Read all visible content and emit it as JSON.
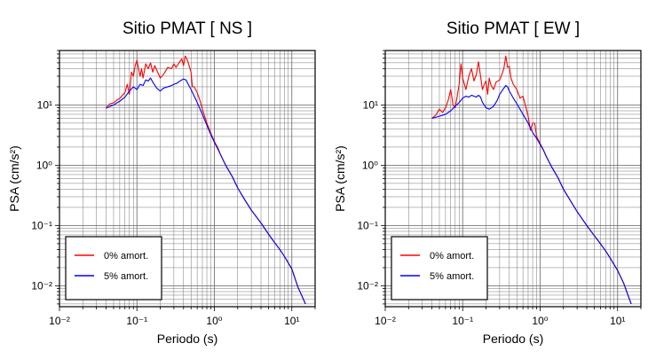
{
  "chart_data": [
    {
      "type": "line",
      "title": "Sitio PMAT [ NS ]",
      "xlabel": "Periodo (s)",
      "ylabel": "PSA (cm/s²)",
      "x_scale": "log",
      "y_scale": "log",
      "xlim": [
        0.01,
        20
      ],
      "ylim": [
        0.0045,
        80
      ],
      "x_ticks": [
        {
          "v": 0.01,
          "label": "10⁻²"
        },
        {
          "v": 0.1,
          "label": "10⁻¹"
        },
        {
          "v": 1,
          "label": "10⁰"
        },
        {
          "v": 10,
          "label": "10¹"
        }
      ],
      "y_ticks": [
        {
          "v": 0.01,
          "label": "10⁻²"
        },
        {
          "v": 0.1,
          "label": "10⁻¹"
        },
        {
          "v": 1,
          "label": "10⁰"
        },
        {
          "v": 10,
          "label": "10¹"
        }
      ],
      "grid": true,
      "legend_position": "bottom-left",
      "series": [
        {
          "name": "0% amort.",
          "color": "#ff0000",
          "points": [
            [
              0.04,
              9.0
            ],
            [
              0.045,
              10.5
            ],
            [
              0.05,
              10.8
            ],
            [
              0.055,
              12.0
            ],
            [
              0.06,
              12.8
            ],
            [
              0.065,
              14.5
            ],
            [
              0.07,
              16.0
            ],
            [
              0.075,
              22.0
            ],
            [
              0.08,
              15.0
            ],
            [
              0.085,
              35.0
            ],
            [
              0.09,
              30.0
            ],
            [
              0.095,
              45.0
            ],
            [
              0.1,
              55.0
            ],
            [
              0.105,
              40.0
            ],
            [
              0.11,
              30.0
            ],
            [
              0.115,
              40.0
            ],
            [
              0.12,
              28.0
            ],
            [
              0.13,
              48.0
            ],
            [
              0.14,
              40.0
            ],
            [
              0.15,
              50.0
            ],
            [
              0.16,
              35.0
            ],
            [
              0.17,
              45.0
            ],
            [
              0.18,
              38.0
            ],
            [
              0.2,
              28.0
            ],
            [
              0.22,
              32.0
            ],
            [
              0.25,
              42.0
            ],
            [
              0.28,
              40.0
            ],
            [
              0.3,
              48.0
            ],
            [
              0.32,
              42.0
            ],
            [
              0.35,
              50.0
            ],
            [
              0.38,
              58.0
            ],
            [
              0.4,
              45.0
            ],
            [
              0.42,
              65.0
            ],
            [
              0.45,
              55.0
            ],
            [
              0.5,
              35.0
            ],
            [
              0.52,
              20.0
            ],
            [
              0.55,
              20.0
            ],
            [
              0.6,
              16.0
            ],
            [
              0.65,
              12.0
            ],
            [
              0.7,
              8.5
            ],
            [
              0.8,
              5.0
            ],
            [
              0.9,
              3.4
            ],
            [
              1.0,
              2.5
            ],
            [
              1.05,
              2.2
            ],
            [
              1.1,
              2.0
            ],
            [
              1.2,
              1.5
            ],
            [
              1.4,
              1.0
            ],
            [
              1.7,
              0.65
            ],
            [
              2.0,
              0.42
            ],
            [
              2.5,
              0.26
            ],
            [
              3.0,
              0.18
            ],
            [
              4.0,
              0.11
            ],
            [
              5.0,
              0.072
            ],
            [
              6.0,
              0.052
            ],
            [
              7.0,
              0.04
            ],
            [
              8.0,
              0.031
            ],
            [
              10.0,
              0.019
            ],
            [
              12.0,
              0.0095
            ],
            [
              13.5,
              0.0068
            ],
            [
              15.0,
              0.005
            ]
          ]
        },
        {
          "name": "5% amort.",
          "color": "#0000ff",
          "points": [
            [
              0.04,
              8.8
            ],
            [
              0.045,
              9.5
            ],
            [
              0.05,
              10.0
            ],
            [
              0.055,
              10.8
            ],
            [
              0.06,
              11.5
            ],
            [
              0.065,
              12.5
            ],
            [
              0.07,
              13.5
            ],
            [
              0.08,
              17.0
            ],
            [
              0.09,
              20.0
            ],
            [
              0.1,
              18.0
            ],
            [
              0.11,
              22.0
            ],
            [
              0.12,
              21.0
            ],
            [
              0.13,
              26.0
            ],
            [
              0.14,
              25.0
            ],
            [
              0.15,
              28.0
            ],
            [
              0.16,
              24.0
            ],
            [
              0.18,
              19.0
            ],
            [
              0.2,
              17.0
            ],
            [
              0.22,
              19.0
            ],
            [
              0.25,
              20.0
            ],
            [
              0.28,
              21.0
            ],
            [
              0.3,
              22.0
            ],
            [
              0.33,
              23.0
            ],
            [
              0.36,
              25.0
            ],
            [
              0.4,
              27.0
            ],
            [
              0.43,
              26.0
            ],
            [
              0.46,
              22.0
            ],
            [
              0.5,
              18.0
            ],
            [
              0.55,
              14.0
            ],
            [
              0.6,
              11.0
            ],
            [
              0.7,
              7.0
            ],
            [
              0.8,
              4.6
            ],
            [
              0.9,
              3.2
            ],
            [
              1.0,
              2.4
            ],
            [
              1.1,
              1.9
            ],
            [
              1.2,
              1.5
            ],
            [
              1.4,
              1.0
            ],
            [
              1.7,
              0.65
            ],
            [
              2.0,
              0.42
            ],
            [
              2.5,
              0.26
            ],
            [
              3.0,
              0.18
            ],
            [
              4.0,
              0.11
            ],
            [
              5.0,
              0.072
            ],
            [
              6.0,
              0.052
            ],
            [
              7.0,
              0.04
            ],
            [
              8.0,
              0.031
            ],
            [
              10.0,
              0.019
            ],
            [
              12.0,
              0.0095
            ],
            [
              13.5,
              0.0068
            ],
            [
              15.0,
              0.005
            ]
          ]
        }
      ]
    },
    {
      "type": "line",
      "title": "Sitio PMAT [ EW ]",
      "xlabel": "Periodo (s)",
      "ylabel": "PSA (cm/s²)",
      "x_scale": "log",
      "y_scale": "log",
      "xlim": [
        0.01,
        20
      ],
      "ylim": [
        0.0045,
        80
      ],
      "x_ticks": [
        {
          "v": 0.01,
          "label": "10⁻²"
        },
        {
          "v": 0.1,
          "label": "10⁻¹"
        },
        {
          "v": 1,
          "label": "10⁰"
        },
        {
          "v": 10,
          "label": "10¹"
        }
      ],
      "y_ticks": [
        {
          "v": 0.01,
          "label": "10⁻²"
        },
        {
          "v": 0.1,
          "label": "10⁻¹"
        },
        {
          "v": 1,
          "label": "10⁰"
        },
        {
          "v": 10,
          "label": "10¹"
        }
      ],
      "grid": true,
      "legend_position": "bottom-left",
      "series": [
        {
          "name": "0% amort.",
          "color": "#ff0000",
          "points": [
            [
              0.04,
              6.0
            ],
            [
              0.045,
              6.8
            ],
            [
              0.05,
              8.5
            ],
            [
              0.055,
              7.5
            ],
            [
              0.06,
              9.0
            ],
            [
              0.065,
              12.0
            ],
            [
              0.07,
              18.0
            ],
            [
              0.075,
              10.0
            ],
            [
              0.08,
              9.0
            ],
            [
              0.085,
              14.0
            ],
            [
              0.09,
              22.0
            ],
            [
              0.095,
              48.0
            ],
            [
              0.1,
              28.0
            ],
            [
              0.11,
              18.0
            ],
            [
              0.12,
              30.0
            ],
            [
              0.13,
              40.0
            ],
            [
              0.14,
              25.0
            ],
            [
              0.15,
              32.0
            ],
            [
              0.16,
              52.0
            ],
            [
              0.17,
              30.0
            ],
            [
              0.18,
              18.0
            ],
            [
              0.19,
              22.0
            ],
            [
              0.2,
              25.0
            ],
            [
              0.21,
              15.0
            ],
            [
              0.22,
              28.0
            ],
            [
              0.23,
              22.0
            ],
            [
              0.25,
              18.0
            ],
            [
              0.27,
              24.0
            ],
            [
              0.3,
              26.0
            ],
            [
              0.32,
              32.0
            ],
            [
              0.34,
              40.0
            ],
            [
              0.36,
              65.0
            ],
            [
              0.38,
              42.0
            ],
            [
              0.4,
              44.0
            ],
            [
              0.42,
              28.0
            ],
            [
              0.45,
              22.0
            ],
            [
              0.5,
              18.0
            ],
            [
              0.55,
              13.0
            ],
            [
              0.6,
              14.0
            ],
            [
              0.65,
              9.5
            ],
            [
              0.7,
              6.5
            ],
            [
              0.75,
              3.8
            ],
            [
              0.8,
              5.0
            ],
            [
              0.85,
              5.0
            ],
            [
              0.9,
              3.0
            ],
            [
              1.0,
              2.3
            ],
            [
              1.1,
              1.8
            ],
            [
              1.2,
              1.4
            ],
            [
              1.4,
              0.95
            ],
            [
              1.7,
              0.62
            ],
            [
              2.0,
              0.4
            ],
            [
              2.5,
              0.25
            ],
            [
              3.0,
              0.17
            ],
            [
              4.0,
              0.1
            ],
            [
              5.0,
              0.068
            ],
            [
              6.0,
              0.05
            ],
            [
              7.0,
              0.038
            ],
            [
              8.0,
              0.029
            ],
            [
              10.0,
              0.018
            ],
            [
              12.0,
              0.011
            ],
            [
              13.5,
              0.0072
            ],
            [
              15.0,
              0.005
            ]
          ]
        },
        {
          "name": "5% amort.",
          "color": "#0000ff",
          "points": [
            [
              0.04,
              6.0
            ],
            [
              0.05,
              6.5
            ],
            [
              0.06,
              7.0
            ],
            [
              0.07,
              8.0
            ],
            [
              0.08,
              9.5
            ],
            [
              0.09,
              11.0
            ],
            [
              0.1,
              13.0
            ],
            [
              0.11,
              14.0
            ],
            [
              0.12,
              13.5
            ],
            [
              0.13,
              14.5
            ],
            [
              0.14,
              14.0
            ],
            [
              0.15,
              13.5
            ],
            [
              0.16,
              14.5
            ],
            [
              0.17,
              13.5
            ],
            [
              0.18,
              11.0
            ],
            [
              0.2,
              9.0
            ],
            [
              0.22,
              8.5
            ],
            [
              0.25,
              9.5
            ],
            [
              0.28,
              12.0
            ],
            [
              0.3,
              15.0
            ],
            [
              0.33,
              18.0
            ],
            [
              0.36,
              21.0
            ],
            [
              0.38,
              20.0
            ],
            [
              0.4,
              17.0
            ],
            [
              0.45,
              13.0
            ],
            [
              0.5,
              10.5
            ],
            [
              0.55,
              8.5
            ],
            [
              0.6,
              7.0
            ],
            [
              0.7,
              5.0
            ],
            [
              0.8,
              3.5
            ],
            [
              0.9,
              2.8
            ],
            [
              1.0,
              2.2
            ],
            [
              1.1,
              1.8
            ],
            [
              1.2,
              1.4
            ],
            [
              1.4,
              0.95
            ],
            [
              1.7,
              0.62
            ],
            [
              2.0,
              0.4
            ],
            [
              2.5,
              0.25
            ],
            [
              3.0,
              0.17
            ],
            [
              4.0,
              0.1
            ],
            [
              5.0,
              0.068
            ],
            [
              6.0,
              0.05
            ],
            [
              7.0,
              0.038
            ],
            [
              8.0,
              0.029
            ],
            [
              10.0,
              0.018
            ],
            [
              12.0,
              0.011
            ],
            [
              13.5,
              0.0072
            ],
            [
              15.0,
              0.005
            ]
          ]
        }
      ]
    }
  ]
}
